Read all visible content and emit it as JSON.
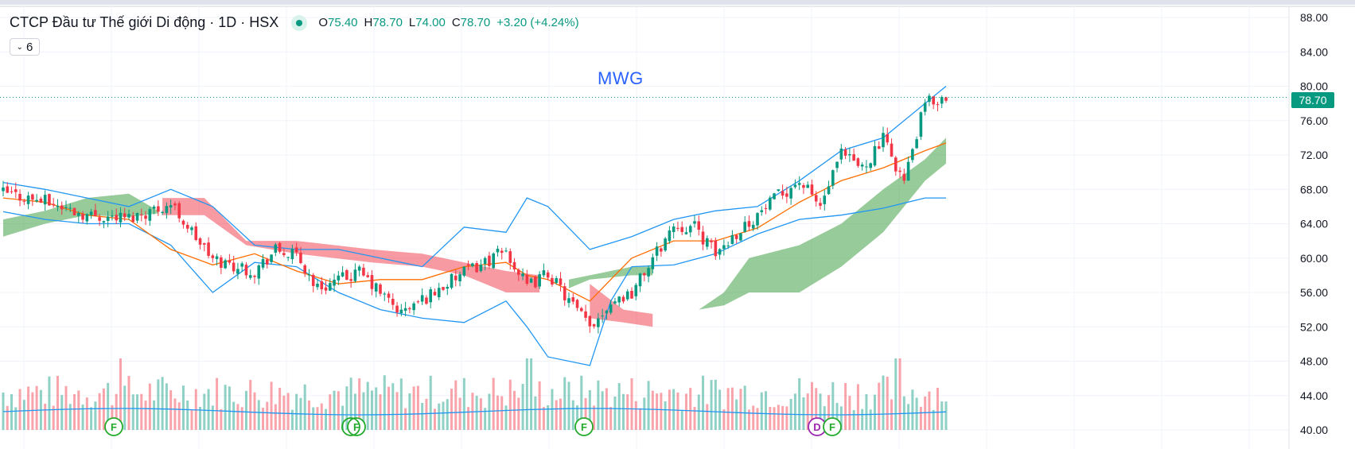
{
  "header": {
    "symbol_title": "CTCP Đầu tư Thế giới Di động · 1D · HSX",
    "ohlc": {
      "o_label": "O",
      "o_value": "75.40",
      "h_label": "H",
      "h_value": "78.70",
      "l_label": "L",
      "l_value": "74.00",
      "c_label": "C",
      "c_value": "78.70",
      "change": "+3.20 (+4.24%)"
    },
    "indicator_count": "6",
    "watermark": "MWG"
  },
  "price_tag": "78.70",
  "colors": {
    "up": "#089981",
    "down": "#f23645",
    "bollinger": "#2196f3",
    "ma": "#ff6d00",
    "cloud_green": "#43a047",
    "cloud_red": "#f23645",
    "price_line": "#089981"
  },
  "chart_data": {
    "type": "candlestick",
    "symbol": "MWG",
    "timeframe": "1D",
    "exchange": "HSX",
    "y_axis": {
      "ticks": [
        "88.00",
        "84.00",
        "80.00",
        "76.00",
        "72.00",
        "68.00",
        "64.00",
        "60.00",
        "56.00",
        "52.00",
        "48.00",
        "44.00",
        "40.00"
      ],
      "range": [
        39.8,
        88.3
      ]
    },
    "last_price": 78.7,
    "series": [
      {
        "name": "Price (close)",
        "type": "candlestick",
        "x": [
          0,
          10,
          20,
          30,
          40,
          50,
          60,
          65,
          70,
          75,
          85,
          95,
          110,
          120,
          125,
          130,
          135,
          140,
          145,
          150,
          155,
          160,
          165,
          170,
          175,
          180,
          185,
          190,
          195,
          200,
          205,
          210,
          215,
          220,
          225
        ],
        "values": [
          67.6,
          66.6,
          65.0,
          64.7,
          66.3,
          59.8,
          58.5,
          60.9,
          60.2,
          56.5,
          58.3,
          53.6,
          58.3,
          60.8,
          56.6,
          58.3,
          55.0,
          52.0,
          55.0,
          56.0,
          59.9,
          63.8,
          63.6,
          60.5,
          63.0,
          65.0,
          67.2,
          69.0,
          66.0,
          72.0,
          70.5,
          73.8,
          68.9,
          78.0,
          78.7
        ]
      },
      {
        "name": "Bollinger upper",
        "type": "line",
        "x": [
          0,
          10,
          20,
          30,
          40,
          50,
          60,
          70,
          80,
          90,
          100,
          110,
          120,
          125,
          130,
          140,
          150,
          160,
          170,
          180,
          190,
          200,
          210,
          220,
          225
        ],
        "values": [
          68.8,
          68.0,
          67.0,
          66.0,
          68.0,
          66.0,
          61.5,
          61.0,
          61.0,
          60.0,
          59.0,
          63.6,
          63.0,
          67.0,
          66.0,
          61.0,
          62.5,
          64.5,
          65.5,
          66.0,
          69.0,
          72.5,
          74.0,
          78.0,
          80.0
        ]
      },
      {
        "name": "Bollinger lower",
        "type": "line",
        "x": [
          0,
          10,
          20,
          30,
          40,
          50,
          60,
          70,
          80,
          90,
          100,
          110,
          120,
          125,
          130,
          140,
          145,
          150,
          160,
          170,
          180,
          190,
          200,
          210,
          220,
          225
        ],
        "values": [
          65.4,
          64.5,
          64.0,
          64.0,
          61.5,
          56.0,
          59.5,
          59.0,
          56.0,
          54.0,
          53.0,
          52.5,
          55.0,
          52.0,
          48.5,
          47.5,
          55.0,
          59.0,
          59.2,
          60.5,
          62.8,
          64.5,
          65.0,
          65.8,
          67.0,
          67.0
        ]
      },
      {
        "name": "Middle MA",
        "type": "line",
        "x": [
          0,
          10,
          20,
          30,
          40,
          50,
          60,
          70,
          80,
          90,
          100,
          110,
          120,
          125,
          130,
          140,
          150,
          160,
          170,
          180,
          190,
          200,
          210,
          220,
          225
        ],
        "values": [
          67.0,
          66.5,
          65.0,
          64.5,
          61.0,
          59.2,
          60.5,
          58.5,
          57.0,
          57.5,
          57.5,
          59.0,
          59.5,
          58.0,
          57.5,
          55.0,
          60.0,
          62.0,
          62.0,
          63.5,
          66.5,
          69.0,
          70.5,
          72.5,
          73.4
        ]
      }
    ],
    "volume_profile_line": {
      "name": "Volume MA",
      "values_relative": "flat"
    },
    "events": [
      {
        "label": "F",
        "type": "earnings"
      },
      {
        "label": "F",
        "type": "earnings"
      },
      {
        "label": "F",
        "type": "earnings"
      },
      {
        "label": "D",
        "type": "dividend"
      },
      {
        "label": "F",
        "type": "earnings"
      }
    ]
  }
}
